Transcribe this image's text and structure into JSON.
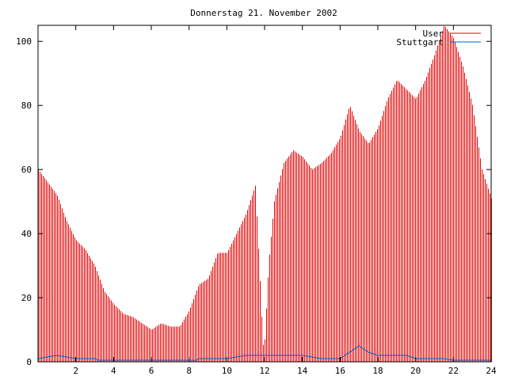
{
  "chart_data": {
    "type": "bar",
    "title": "Donnerstag 21. November 2002",
    "xlabel": "",
    "ylabel": "",
    "xlim": [
      0,
      24
    ],
    "ylim": [
      0,
      105
    ],
    "x_ticks": [
      2,
      4,
      6,
      8,
      10,
      12,
      14,
      16,
      18,
      20,
      22,
      24
    ],
    "y_ticks": [
      0,
      20,
      40,
      60,
      80,
      100
    ],
    "grid": false,
    "legend_position": "top-right",
    "series": [
      {
        "name": "User",
        "style": "impulses",
        "color": "#e00000",
        "values": [
          [
            0.0,
            60
          ],
          [
            0.5,
            56
          ],
          [
            1.0,
            52
          ],
          [
            1.5,
            44
          ],
          [
            2.0,
            38
          ],
          [
            2.5,
            35
          ],
          [
            3.0,
            30
          ],
          [
            3.5,
            22
          ],
          [
            4.0,
            18
          ],
          [
            4.5,
            15
          ],
          [
            5.0,
            14
          ],
          [
            5.5,
            12
          ],
          [
            6.0,
            10
          ],
          [
            6.5,
            12
          ],
          [
            7.0,
            11
          ],
          [
            7.5,
            11
          ],
          [
            8.0,
            16
          ],
          [
            8.5,
            24
          ],
          [
            9.0,
            26
          ],
          [
            9.5,
            34
          ],
          [
            10.0,
            34
          ],
          [
            10.5,
            40
          ],
          [
            11.0,
            46
          ],
          [
            11.5,
            55
          ],
          [
            11.75,
            25
          ],
          [
            11.9,
            5
          ],
          [
            12.0,
            7
          ],
          [
            12.2,
            30
          ],
          [
            12.5,
            50
          ],
          [
            13.0,
            62
          ],
          [
            13.5,
            66
          ],
          [
            14.0,
            64
          ],
          [
            14.5,
            60
          ],
          [
            15.0,
            62
          ],
          [
            15.5,
            65
          ],
          [
            16.0,
            70
          ],
          [
            16.5,
            80
          ],
          [
            17.0,
            72
          ],
          [
            17.5,
            68
          ],
          [
            18.0,
            73
          ],
          [
            18.5,
            82
          ],
          [
            19.0,
            88
          ],
          [
            19.5,
            85
          ],
          [
            20.0,
            82
          ],
          [
            20.5,
            88
          ],
          [
            21.0,
            96
          ],
          [
            21.5,
            105
          ],
          [
            22.0,
            101
          ],
          [
            22.5,
            92
          ],
          [
            23.0,
            80
          ],
          [
            23.5,
            60
          ],
          [
            24.0,
            51
          ]
        ]
      },
      {
        "name": "Stuttgart",
        "style": "line",
        "color": "#0060c0",
        "values": [
          [
            0.0,
            1
          ],
          [
            1.0,
            2
          ],
          [
            2.0,
            1
          ],
          [
            3.0,
            1
          ],
          [
            3.2,
            0.5
          ],
          [
            8.4,
            0.5
          ],
          [
            8.5,
            1
          ],
          [
            10.0,
            1
          ],
          [
            11.0,
            2
          ],
          [
            14.0,
            2
          ],
          [
            15.0,
            1
          ],
          [
            16.0,
            1
          ],
          [
            16.5,
            3
          ],
          [
            17.0,
            5
          ],
          [
            17.5,
            3
          ],
          [
            18.0,
            2
          ],
          [
            19.5,
            2
          ],
          [
            20.0,
            1
          ],
          [
            21.5,
            1
          ],
          [
            22.0,
            0.5
          ],
          [
            24.0,
            0.5
          ]
        ]
      }
    ]
  }
}
